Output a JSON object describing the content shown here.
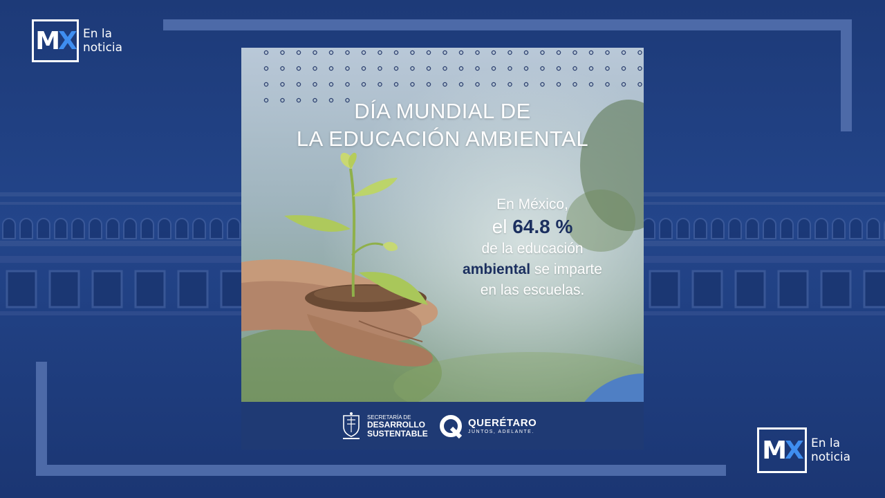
{
  "logo_top": {
    "mark_m": "M",
    "mark_x": "X",
    "line1": "En la",
    "line2": "noticia"
  },
  "logo_bottom": {
    "mark_m": "M",
    "mark_x": "X",
    "line1": "En la",
    "line2": "noticia"
  },
  "poster": {
    "title_line1": "DÍA MUNDIAL DE",
    "title_line2": "LA EDUCACIÓN AMBIENTAL",
    "stat": {
      "line1": "En México,",
      "line2_pre": "el ",
      "line2_value": "64.8 %",
      "line3": "de la educación",
      "line4_hl": "ambiental",
      "line4_rest": " se imparte",
      "line5": "en las escuelas."
    },
    "footer": {
      "secretaria_small": "SECRETARÍA DE",
      "secretaria_line1": "DESARROLLO",
      "secretaria_line2": "SUSTENTABLE",
      "queretaro": "QUERÉTARO",
      "queretaro_slogan": "JUNTOS, ADELANTE."
    }
  },
  "colors": {
    "background": "#23458a",
    "footer": "#1f3a74",
    "accent": "#3f8ef0",
    "highlight_text": "#1b2f5f"
  },
  "icons": [
    "mx-logo-icon",
    "seedling-hands-icon",
    "coat-of-arms-icon",
    "queretaro-q-icon"
  ]
}
